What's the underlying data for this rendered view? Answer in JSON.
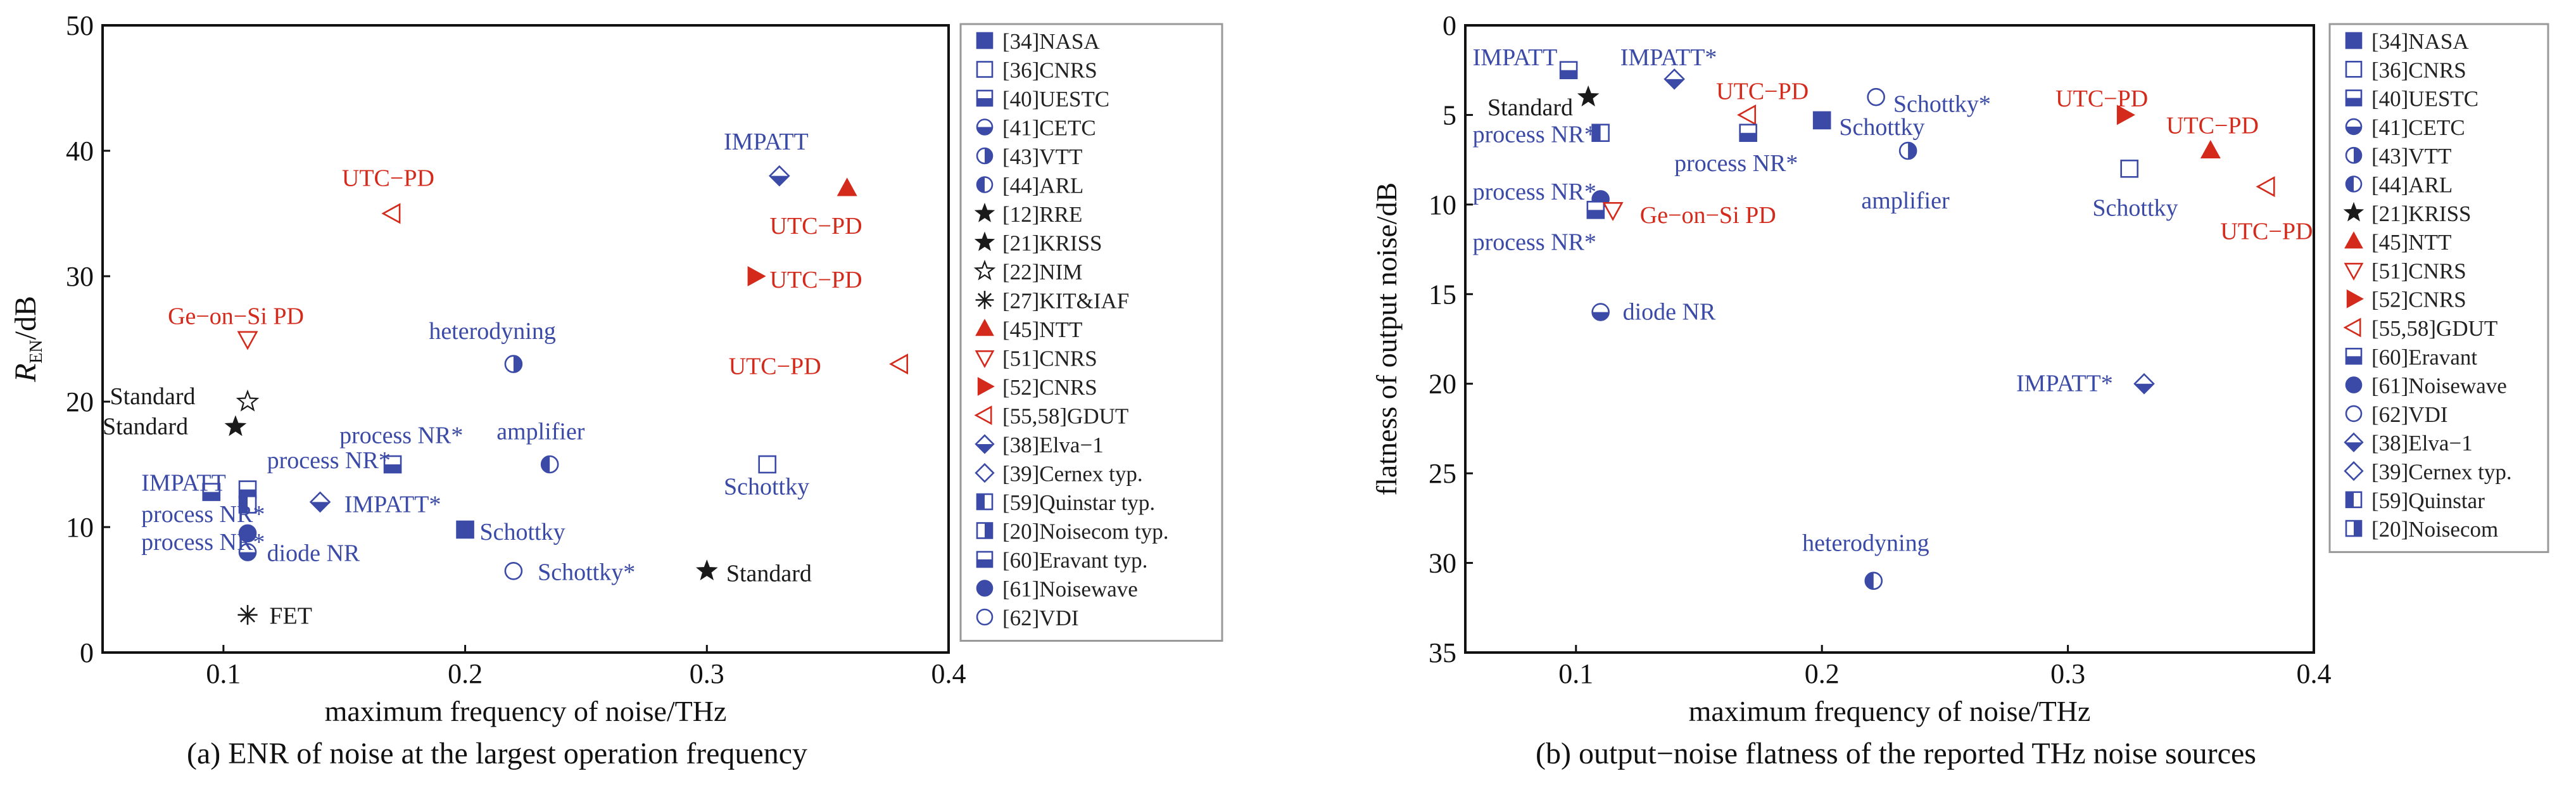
{
  "colors": {
    "blue": "#3a4aa6",
    "red": "#d42a1c",
    "black": "#1a1a1a",
    "axis": "#111111",
    "legend_border": "#999999",
    "grid": "#cccccc"
  },
  "chart_data": [
    {
      "type": "scatter",
      "caption": "(a) ENR of noise at the largest operation frequency",
      "xlabel": "maximum frequency of noise/THz",
      "ylabel_main": "R",
      "ylabel_sub": "EN",
      "ylabel_tail": "/dB",
      "xlim": [
        0.05,
        0.4
      ],
      "ylim": [
        0,
        50
      ],
      "x_ticks": [
        0.1,
        0.2,
        0.3,
        0.4
      ],
      "y_ticks": [
        0,
        10,
        20,
        30,
        40,
        50
      ],
      "grid": false,
      "legend_position": "right",
      "legend": [
        {
          "label": "[34]NASA",
          "marker": "square-filled",
          "color": "blue"
        },
        {
          "label": "[36]CNRS",
          "marker": "square-open",
          "color": "blue"
        },
        {
          "label": "[40]UESTC",
          "marker": "square-half",
          "color": "blue"
        },
        {
          "label": "[41]CETC",
          "marker": "circle-halfbottom",
          "color": "blue"
        },
        {
          "label": "[43]VTT",
          "marker": "circle-halfright",
          "color": "blue"
        },
        {
          "label": "[44]ARL",
          "marker": "circle-halfleft",
          "color": "blue"
        },
        {
          "label": "[12]RRE",
          "marker": "star-filled",
          "color": "black"
        },
        {
          "label": "[21]KRISS",
          "marker": "star-filled",
          "color": "black"
        },
        {
          "label": "[22]NIM",
          "marker": "star-open",
          "color": "black"
        },
        {
          "label": "[27]KIT&IAF",
          "marker": "asterisk",
          "color": "black"
        },
        {
          "label": "[45]NTT",
          "marker": "triangle-up",
          "color": "red"
        },
        {
          "label": "[51]CNRS",
          "marker": "triangle-down-open",
          "color": "red"
        },
        {
          "label": "[52]CNRS",
          "marker": "triangle-right",
          "color": "red"
        },
        {
          "label": "[55,58]GDUT",
          "marker": "triangle-left-open",
          "color": "red"
        },
        {
          "label": "[38]Elva−1",
          "marker": "diamond-half",
          "color": "blue"
        },
        {
          "label": "[39]Cernex typ.",
          "marker": "diamond-open",
          "color": "blue"
        },
        {
          "label": "[59]Quinstar typ.",
          "marker": "square-halfleft",
          "color": "blue"
        },
        {
          "label": "[20]Noisecom typ.",
          "marker": "square-halfright",
          "color": "blue"
        },
        {
          "label": "[60]Eravant typ.",
          "marker": "square-half",
          "color": "blue"
        },
        {
          "label": "[61]Noisewave",
          "marker": "circle-filled",
          "color": "blue"
        },
        {
          "label": "[62]VDI",
          "marker": "circle-open",
          "color": "blue"
        }
      ],
      "points": [
        {
          "x": 0.095,
          "y": 12.8,
          "marker": "square-half",
          "color": "blue"
        },
        {
          "x": 0.11,
          "y": 13.0,
          "marker": "square-half",
          "color": "blue"
        },
        {
          "x": 0.11,
          "y": 11.8,
          "marker": "square-halfleft",
          "color": "blue"
        },
        {
          "x": 0.11,
          "y": 9.5,
          "marker": "circle-filled",
          "color": "blue"
        },
        {
          "x": 0.11,
          "y": 8.0,
          "marker": "circle-halfbottom",
          "color": "blue"
        },
        {
          "x": 0.11,
          "y": 3.0,
          "marker": "asterisk",
          "color": "black"
        },
        {
          "x": 0.105,
          "y": 18.0,
          "marker": "star-filled",
          "color": "black"
        },
        {
          "x": 0.11,
          "y": 20.0,
          "marker": "star-open",
          "color": "black"
        },
        {
          "x": 0.11,
          "y": 25.0,
          "marker": "triangle-down-open",
          "color": "red"
        },
        {
          "x": 0.14,
          "y": 12.0,
          "marker": "diamond-half",
          "color": "blue"
        },
        {
          "x": 0.17,
          "y": 15.0,
          "marker": "square-half",
          "color": "blue"
        },
        {
          "x": 0.17,
          "y": 35.0,
          "marker": "triangle-left-open",
          "color": "red"
        },
        {
          "x": 0.2,
          "y": 9.8,
          "marker": "square-filled",
          "color": "blue"
        },
        {
          "x": 0.22,
          "y": 6.5,
          "marker": "circle-open",
          "color": "blue"
        },
        {
          "x": 0.22,
          "y": 23.0,
          "marker": "circle-halfright",
          "color": "blue"
        },
        {
          "x": 0.235,
          "y": 15.0,
          "marker": "circle-halfleft",
          "color": "blue"
        },
        {
          "x": 0.3,
          "y": 6.5,
          "marker": "star-filled",
          "color": "black"
        },
        {
          "x": 0.32,
          "y": 30.0,
          "marker": "triangle-right",
          "color": "red"
        },
        {
          "x": 0.325,
          "y": 15.0,
          "marker": "square-open",
          "color": "blue"
        },
        {
          "x": 0.33,
          "y": 38.0,
          "marker": "diamond-half",
          "color": "blue"
        },
        {
          "x": 0.358,
          "y": 37.0,
          "marker": "triangle-up",
          "color": "red"
        },
        {
          "x": 0.38,
          "y": 23.0,
          "marker": "triangle-left-open",
          "color": "red"
        }
      ],
      "annotations": [
        {
          "text": "IMPATT",
          "x": 0.066,
          "y": 13.5,
          "color": "blue"
        },
        {
          "text": "process NR*",
          "x": 0.066,
          "y": 11.0,
          "color": "blue"
        },
        {
          "text": "process NR*",
          "x": 0.066,
          "y": 8.8,
          "color": "blue"
        },
        {
          "text": "process NR*",
          "x": 0.118,
          "y": 15.3,
          "color": "blue"
        },
        {
          "text": "process NR*",
          "x": 0.148,
          "y": 17.3,
          "color": "blue"
        },
        {
          "text": "IMPATT*",
          "x": 0.15,
          "y": 11.8,
          "color": "blue"
        },
        {
          "text": "diode NR",
          "x": 0.118,
          "y": 7.9,
          "color": "blue"
        },
        {
          "text": "FET",
          "x": 0.119,
          "y": 2.9,
          "color": "black"
        },
        {
          "text": "Standard",
          "x": 0.053,
          "y": 20.4,
          "color": "black"
        },
        {
          "text": "Standard",
          "x": 0.05,
          "y": 18.0,
          "color": "black"
        },
        {
          "text": "Ge−on−Si PD",
          "x": 0.077,
          "y": 26.8,
          "color": "red"
        },
        {
          "text": "UTC−PD",
          "x": 0.149,
          "y": 37.8,
          "color": "red"
        },
        {
          "text": "heterodyning",
          "x": 0.185,
          "y": 25.6,
          "color": "blue"
        },
        {
          "text": "amplifier",
          "x": 0.213,
          "y": 17.6,
          "color": "blue"
        },
        {
          "text": "Schottky",
          "x": 0.206,
          "y": 9.6,
          "color": "blue"
        },
        {
          "text": "Schottky*",
          "x": 0.23,
          "y": 6.4,
          "color": "blue"
        },
        {
          "text": "Standard",
          "x": 0.308,
          "y": 6.3,
          "color": "black"
        },
        {
          "text": "Schottky",
          "x": 0.307,
          "y": 13.2,
          "color": "blue"
        },
        {
          "text": "IMPATT",
          "x": 0.307,
          "y": 40.7,
          "color": "blue"
        },
        {
          "text": "UTC−PD",
          "x": 0.326,
          "y": 34.0,
          "color": "red"
        },
        {
          "text": "UTC−PD",
          "x": 0.326,
          "y": 29.7,
          "color": "red"
        },
        {
          "text": "UTC−PD",
          "x": 0.309,
          "y": 22.8,
          "color": "red"
        }
      ]
    },
    {
      "type": "scatter",
      "caption": "(b) output−noise flatness of the reported THz noise sources",
      "xlabel": "maximum frequency of noise/THz",
      "ylabel": "flatness of output noise/dB",
      "xlim": [
        0.055,
        0.4
      ],
      "ylim": [
        35,
        0
      ],
      "y_inverted": true,
      "x_ticks": [
        0.1,
        0.2,
        0.3,
        0.4
      ],
      "y_ticks": [
        0,
        5,
        10,
        15,
        20,
        25,
        30,
        35
      ],
      "grid": false,
      "legend_position": "right",
      "legend": [
        {
          "label": "[34]NASA",
          "marker": "square-filled",
          "color": "blue"
        },
        {
          "label": "[36]CNRS",
          "marker": "square-open",
          "color": "blue"
        },
        {
          "label": "[40]UESTC",
          "marker": "square-half",
          "color": "blue"
        },
        {
          "label": "[41]CETC",
          "marker": "circle-halfbottom",
          "color": "blue"
        },
        {
          "label": "[43]VTT",
          "marker": "circle-halfright",
          "color": "blue"
        },
        {
          "label": "[44]ARL",
          "marker": "circle-halfleft",
          "color": "blue"
        },
        {
          "label": "[21]KRISS",
          "marker": "star-filled",
          "color": "black"
        },
        {
          "label": "[45]NTT",
          "marker": "triangle-up",
          "color": "red"
        },
        {
          "label": "[51]CNRS",
          "marker": "triangle-down-open",
          "color": "red"
        },
        {
          "label": "[52]CNRS",
          "marker": "triangle-right",
          "color": "red"
        },
        {
          "label": "[55,58]GDUT",
          "marker": "triangle-left-open",
          "color": "red"
        },
        {
          "label": "[60]Eravant",
          "marker": "square-half",
          "color": "blue"
        },
        {
          "label": "[61]Noisewave",
          "marker": "circle-filled",
          "color": "blue"
        },
        {
          "label": "[62]VDI",
          "marker": "circle-open",
          "color": "blue"
        },
        {
          "label": "[38]Elva−1",
          "marker": "diamond-half",
          "color": "blue"
        },
        {
          "label": "[39]Cernex typ.",
          "marker": "diamond-open",
          "color": "blue"
        },
        {
          "label": "[59]Quinstar",
          "marker": "square-halfleft",
          "color": "blue"
        },
        {
          "label": "[20]Noisecom",
          "marker": "square-halfright",
          "color": "blue"
        }
      ],
      "points": [
        {
          "x": 0.097,
          "y": 2.5,
          "marker": "square-half",
          "color": "blue"
        },
        {
          "x": 0.105,
          "y": 4.0,
          "marker": "star-filled",
          "color": "black"
        },
        {
          "x": 0.11,
          "y": 6.0,
          "marker": "square-halfleft",
          "color": "blue"
        },
        {
          "x": 0.11,
          "y": 9.7,
          "marker": "circle-filled",
          "color": "blue"
        },
        {
          "x": 0.108,
          "y": 10.3,
          "marker": "square-half",
          "color": "blue"
        },
        {
          "x": 0.115,
          "y": 10.3,
          "marker": "triangle-down-open",
          "color": "red"
        },
        {
          "x": 0.11,
          "y": 16.0,
          "marker": "circle-halfbottom",
          "color": "blue"
        },
        {
          "x": 0.14,
          "y": 3.0,
          "marker": "diamond-half",
          "color": "blue"
        },
        {
          "x": 0.17,
          "y": 5.0,
          "marker": "triangle-left-open",
          "color": "red"
        },
        {
          "x": 0.17,
          "y": 6.0,
          "marker": "square-half",
          "color": "blue"
        },
        {
          "x": 0.2,
          "y": 5.3,
          "marker": "square-filled",
          "color": "blue"
        },
        {
          "x": 0.222,
          "y": 4.0,
          "marker": "circle-open",
          "color": "blue"
        },
        {
          "x": 0.235,
          "y": 7.0,
          "marker": "circle-halfright",
          "color": "blue"
        },
        {
          "x": 0.221,
          "y": 31.0,
          "marker": "circle-halfleft",
          "color": "blue"
        },
        {
          "x": 0.323,
          "y": 5.0,
          "marker": "triangle-right",
          "color": "red"
        },
        {
          "x": 0.325,
          "y": 8.0,
          "marker": "square-open",
          "color": "blue"
        },
        {
          "x": 0.358,
          "y": 7.0,
          "marker": "triangle-up",
          "color": "red"
        },
        {
          "x": 0.381,
          "y": 9.0,
          "marker": "triangle-left-open",
          "color": "red"
        },
        {
          "x": 0.331,
          "y": 20.0,
          "marker": "diamond-half",
          "color": "blue"
        }
      ],
      "annotations": [
        {
          "text": "IMPATT",
          "x": 0.058,
          "y": 1.8,
          "color": "blue"
        },
        {
          "text": "IMPATT*",
          "x": 0.118,
          "y": 1.8,
          "color": "blue"
        },
        {
          "text": "Standard",
          "x": 0.064,
          "y": 4.6,
          "color": "black"
        },
        {
          "text": "process NR*",
          "x": 0.058,
          "y": 6.1,
          "color": "blue"
        },
        {
          "text": "UTC−PD",
          "x": 0.157,
          "y": 3.7,
          "color": "red"
        },
        {
          "text": "process NR*",
          "x": 0.14,
          "y": 7.7,
          "color": "blue"
        },
        {
          "text": "Schottky",
          "x": 0.207,
          "y": 5.7,
          "color": "blue"
        },
        {
          "text": "Schottky*",
          "x": 0.229,
          "y": 4.4,
          "color": "blue"
        },
        {
          "text": "amplifier",
          "x": 0.216,
          "y": 9.8,
          "color": "blue"
        },
        {
          "text": "process NR*",
          "x": 0.058,
          "y": 9.3,
          "color": "blue"
        },
        {
          "text": "Ge−on−Si PD",
          "x": 0.126,
          "y": 10.6,
          "color": "red"
        },
        {
          "text": "process NR*",
          "x": 0.058,
          "y": 12.1,
          "color": "blue"
        },
        {
          "text": "diode NR",
          "x": 0.119,
          "y": 16.0,
          "color": "blue"
        },
        {
          "text": "UTC−PD",
          "x": 0.295,
          "y": 4.1,
          "color": "red"
        },
        {
          "text": "UTC−PD",
          "x": 0.34,
          "y": 5.6,
          "color": "red"
        },
        {
          "text": "Schottky",
          "x": 0.31,
          "y": 10.2,
          "color": "blue"
        },
        {
          "text": "UTC−PD",
          "x": 0.362,
          "y": 11.5,
          "color": "red"
        },
        {
          "text": "IMPATT*",
          "x": 0.279,
          "y": 20.0,
          "color": "blue"
        },
        {
          "text": "heterodyning",
          "x": 0.192,
          "y": 28.9,
          "color": "blue"
        }
      ]
    }
  ]
}
